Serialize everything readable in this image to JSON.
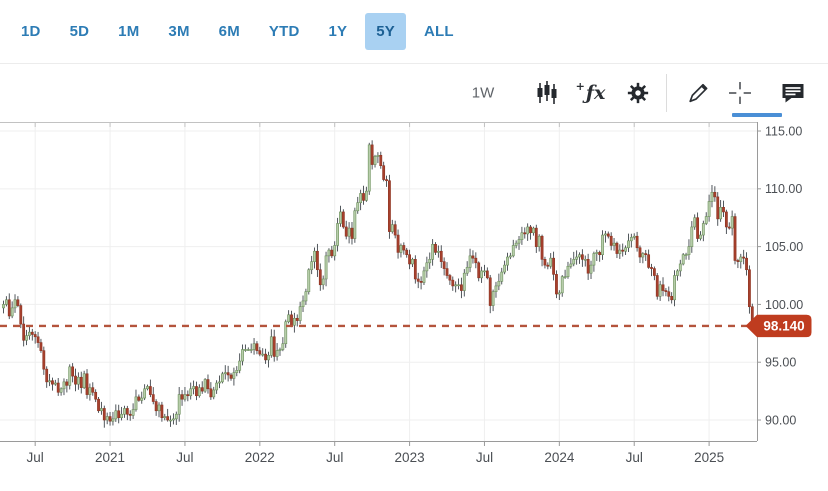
{
  "colors": {
    "accent_blue": "#2d7cb5",
    "selected_range_bg": "#a9d1f2",
    "active_tool_underline": "#4a8fd6",
    "badge_bg": "#bf3c1f",
    "badge_text": "#ffffff",
    "price_line": "#b4543c",
    "up_fill": "#b7cdaa",
    "up_border": "#6b8f5a",
    "down_fill": "#a7402d",
    "down_border": "#8c3423",
    "wick": "#3f454b",
    "gridline": "#efefef",
    "axis_line": "#c2c2c2",
    "tick_label": "#4b4f54"
  },
  "range_bar": {
    "items": [
      {
        "label": "1D",
        "selected": false
      },
      {
        "label": "5D",
        "selected": false
      },
      {
        "label": "1M",
        "selected": false
      },
      {
        "label": "3M",
        "selected": false
      },
      {
        "label": "6M",
        "selected": false
      },
      {
        "label": "YTD",
        "selected": false
      },
      {
        "label": "1Y",
        "selected": false
      },
      {
        "label": "5Y",
        "selected": true
      },
      {
        "label": "ALL",
        "selected": false
      }
    ]
  },
  "toolbar": {
    "interval_label": "1W",
    "icons": [
      "candlestick-style-icon",
      "indicators-fx-icon",
      "settings-gear-icon",
      "draw-pencil-icon",
      "crosshair-icon",
      "news-comments-icon"
    ],
    "active_tool": "crosshair-icon"
  },
  "chart_data": {
    "type": "candlestick",
    "interval": "1W",
    "grid": true,
    "ylim": [
      88.2,
      115.8
    ],
    "y_ticks": [
      {
        "value": 90,
        "label": "90.00"
      },
      {
        "value": 95,
        "label": "95.00"
      },
      {
        "value": 100,
        "label": "100.00"
      },
      {
        "value": 105,
        "label": "105.00"
      },
      {
        "value": 110,
        "label": "110.00"
      },
      {
        "value": 115,
        "label": "115.00"
      }
    ],
    "x_ticks": [
      {
        "week": 11,
        "label": "Jul"
      },
      {
        "week": 37,
        "label": "2021"
      },
      {
        "week": 63,
        "label": "Jul"
      },
      {
        "week": 89,
        "label": "2022"
      },
      {
        "week": 115,
        "label": "Jul"
      },
      {
        "week": 141,
        "label": "2023"
      },
      {
        "week": 167,
        "label": "Jul"
      },
      {
        "week": 193,
        "label": "2024"
      },
      {
        "week": 219,
        "label": "Jul"
      },
      {
        "week": 245,
        "label": "2025"
      }
    ],
    "last_price": 98.14,
    "last_price_label": "98.140",
    "price_line": {
      "value": 98.14,
      "style": "dashed",
      "color": "#b4543c"
    },
    "closes": [
      100.0,
      100.4,
      99.0,
      99.7,
      100.4,
      99.9,
      98.3,
      96.9,
      97.3,
      97.6,
      97.4,
      97.2,
      96.7,
      96.0,
      94.4,
      93.3,
      93.4,
      93.1,
      93.2,
      92.4,
      92.7,
      93.3,
      93.0,
      94.6,
      93.8,
      93.1,
      93.7,
      92.8,
      94.0,
      92.2,
      92.8,
      92.4,
      91.8,
      90.8,
      91.0,
      90.0,
      90.3,
      89.9,
      90.1,
      90.8,
      90.2,
      90.5,
      91.0,
      90.5,
      90.4,
      90.9,
      92.0,
      91.7,
      91.9,
      92.7,
      92.9,
      92.2,
      91.6,
      90.8,
      91.3,
      90.2,
      90.3,
      90.0,
      90.0,
      90.1,
      90.5,
      92.2,
      91.8,
      92.2,
      92.1,
      92.7,
      92.9,
      92.1,
      92.8,
      92.5,
      93.5,
      92.7,
      92.0,
      92.6,
      93.2,
      93.3,
      94.0,
      94.1,
      93.9,
      93.6,
      94.1,
      94.3,
      95.1,
      96.1,
      96.1,
      96.1,
      96.1,
      96.6,
      96.0,
      95.7,
      95.7,
      95.2,
      95.6,
      97.2,
      95.5,
      96.0,
      96.1,
      96.6,
      98.5,
      99.1,
      98.2,
      98.8,
      98.6,
      99.8,
      100.3,
      101.1,
      103.0,
      103.7,
      104.6,
      103.0,
      101.7,
      102.2,
      104.2,
      104.7,
      104.2,
      105.1,
      107.0,
      108.0,
      106.7,
      105.9,
      106.6,
      105.7,
      108.1,
      108.8,
      109.6,
      109.0,
      109.8,
      113.8,
      112.1,
      112.8,
      112.9,
      112.0,
      110.8,
      110.7,
      106.3,
      106.9,
      106.0,
      104.5,
      105.1,
      104.7,
      104.3,
      103.5,
      103.9,
      102.2,
      102.0,
      101.9,
      102.9,
      103.6,
      103.9,
      105.2,
      104.5,
      104.6,
      103.7,
      103.1,
      102.5,
      102.1,
      101.6,
      101.7,
      101.7,
      101.2,
      102.7,
      103.2,
      104.2,
      104.0,
      103.6,
      102.3,
      102.9,
      102.9,
      102.3,
      99.9,
      101.1,
      101.6,
      102.0,
      102.8,
      103.4,
      104.1,
      104.2,
      105.1,
      105.3,
      105.6,
      106.2,
      106.1,
      106.7,
      106.2,
      106.6,
      105.0,
      105.9,
      103.9,
      103.4,
      103.3,
      104.0,
      102.6,
      100.9,
      101.0,
      102.4,
      102.4,
      103.3,
      103.5,
      103.9,
      104.1,
      104.3,
      103.9,
      103.9,
      102.7,
      103.4,
      104.4,
      104.5,
      104.3,
      106.0,
      106.1,
      105.9,
      105.1,
      105.3,
      104.4,
      104.7,
      104.6,
      104.9,
      105.5,
      105.8,
      105.9,
      104.9,
      104.1,
      104.4,
      104.3,
      103.2,
      103.1,
      102.5,
      100.7,
      101.7,
      101.2,
      101.1,
      100.7,
      100.4,
      102.5,
      102.9,
      103.5,
      104.3,
      104.3,
      105.0,
      106.7,
      107.5,
      105.7,
      106.0,
      107.0,
      107.6,
      108.9,
      109.7,
      109.3,
      107.4,
      108.4,
      108.0,
      106.7,
      106.6,
      107.6,
      103.8,
      103.7,
      104.1,
      104.0,
      103.0,
      99.8,
      98.14
    ]
  }
}
